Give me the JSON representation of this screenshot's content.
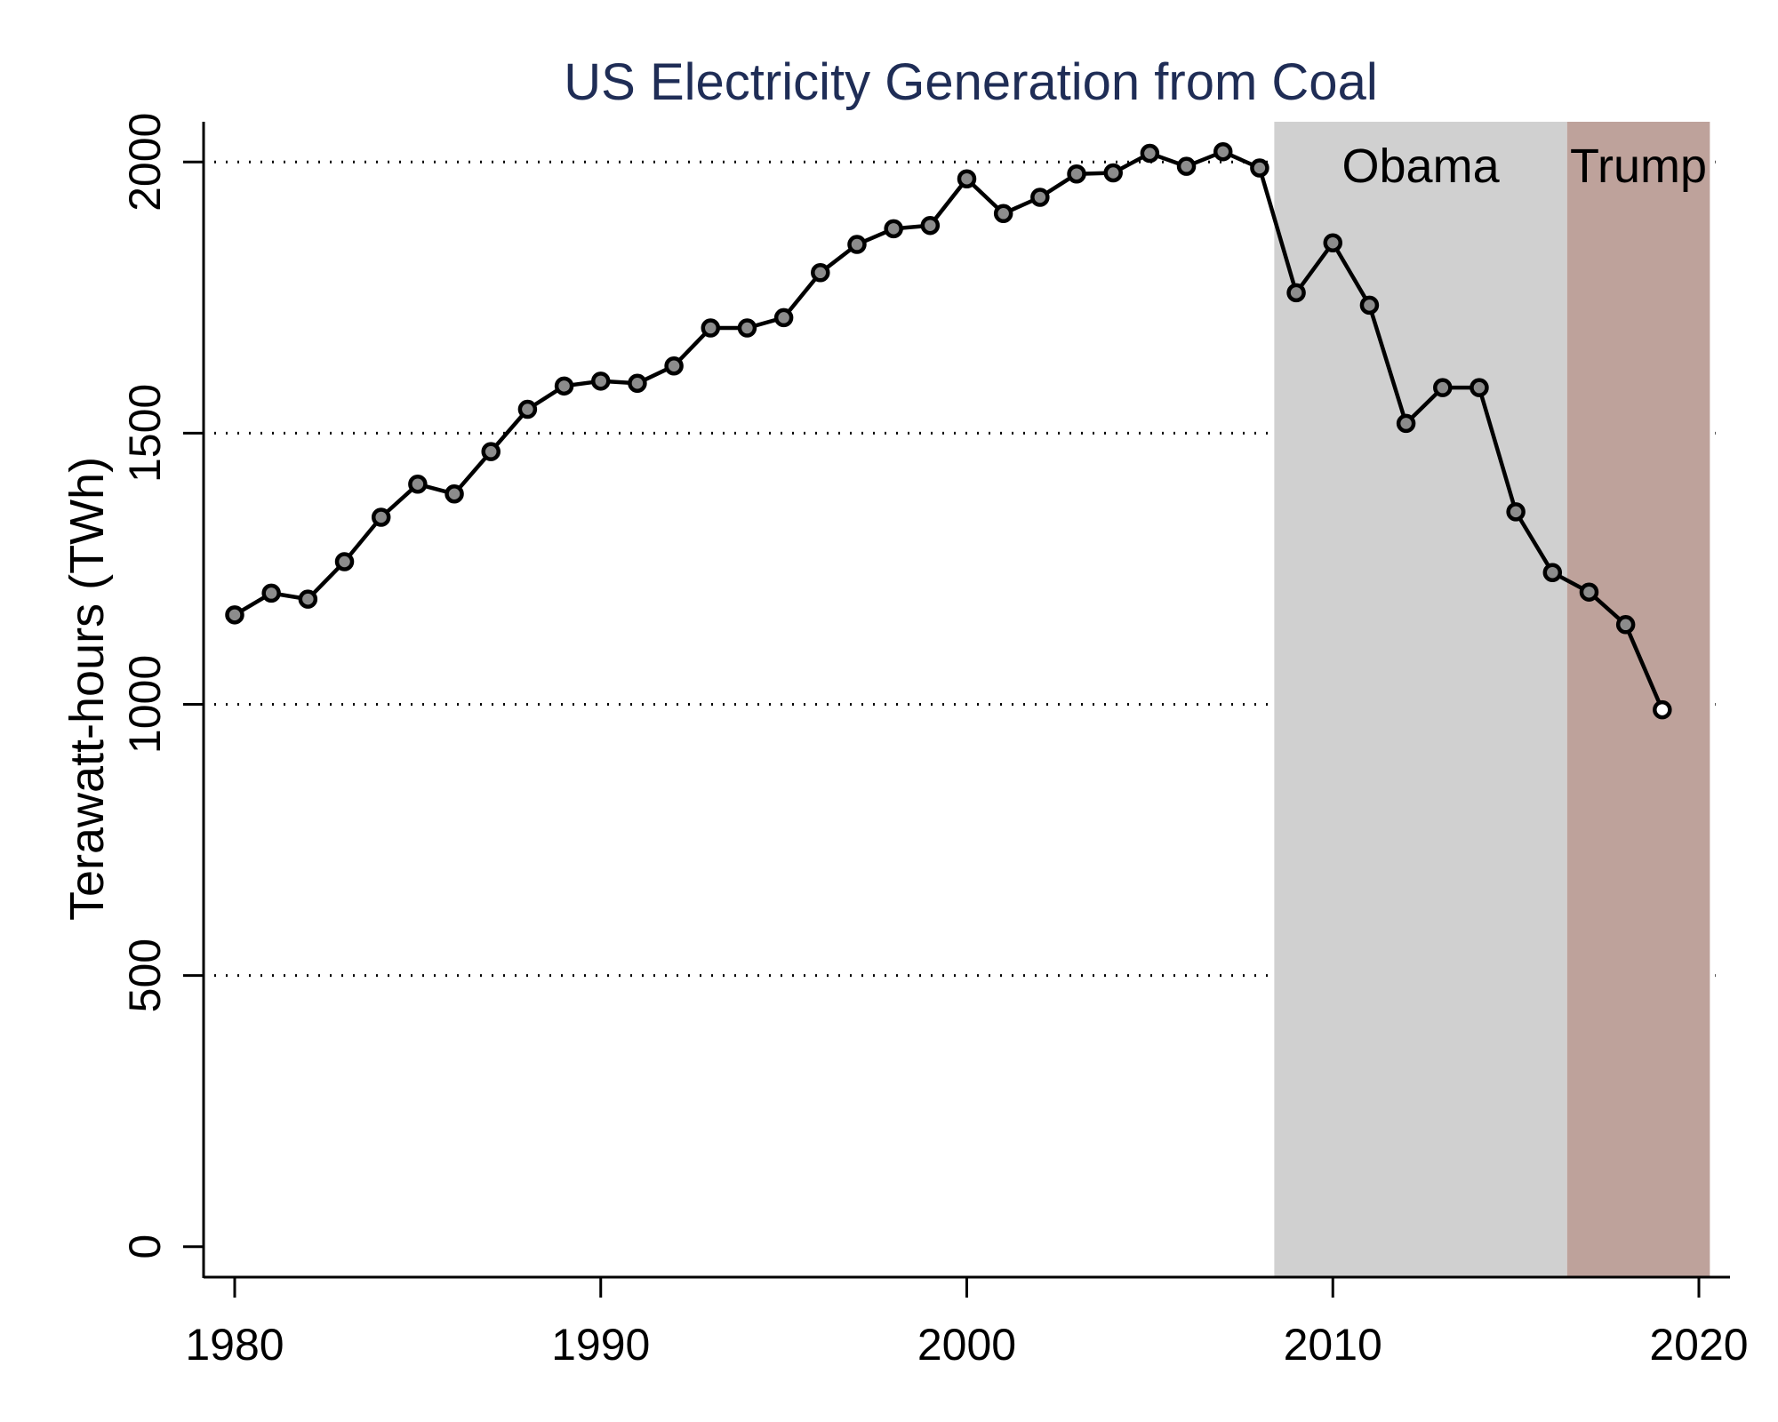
{
  "chart_data": {
    "type": "line",
    "title": "US Electricity Generation from Coal",
    "xlabel": "",
    "ylabel": "Terawatt-hours (TWh)",
    "xlim": [
      1979.2,
      2020.8
    ],
    "ylim": [
      0,
      2060
    ],
    "xticks": [
      1980,
      1990,
      2000,
      2010,
      2020
    ],
    "yticks": [
      0,
      500,
      1000,
      1500,
      2000
    ],
    "grid": "horizontal dotted at 500, 1000, 1500, 2000",
    "x": [
      1980,
      1981,
      1982,
      1983,
      1984,
      1985,
      1986,
      1987,
      1988,
      1989,
      1990,
      1991,
      1992,
      1993,
      1994,
      1995,
      1996,
      1997,
      1998,
      1999,
      2000,
      2001,
      2002,
      2003,
      2004,
      2005,
      2006,
      2007,
      2008,
      2009,
      2010,
      2011,
      2012,
      2013,
      2014,
      2015,
      2016,
      2017,
      2018,
      2019
    ],
    "series": [
      {
        "name": "Coal generation",
        "values": [
          1165,
          1205,
          1194,
          1263,
          1345,
          1406,
          1388,
          1466,
          1544,
          1587,
          1596,
          1592,
          1624,
          1694,
          1694,
          1713,
          1796,
          1848,
          1877,
          1883,
          1969,
          1905,
          1935,
          1978,
          1980,
          2016,
          1992,
          2019,
          1989,
          1759,
          1851,
          1736,
          1518,
          1584,
          1584,
          1355,
          1243,
          1207,
          1147,
          990
        ],
        "line_color": "#000000",
        "marker_fill": "#8c8c8c",
        "open_marker_years": [
          2019
        ],
        "open_marker_fill": "#ffffff"
      }
    ],
    "shaded_periods": [
      {
        "label": "Obama",
        "start": 2008.4,
        "end": 2016.4,
        "color": "#d0d0d0"
      },
      {
        "label": "Trump",
        "start": 2016.4,
        "end": 2020.3,
        "color": "#bea29b"
      }
    ],
    "legend": "none"
  }
}
